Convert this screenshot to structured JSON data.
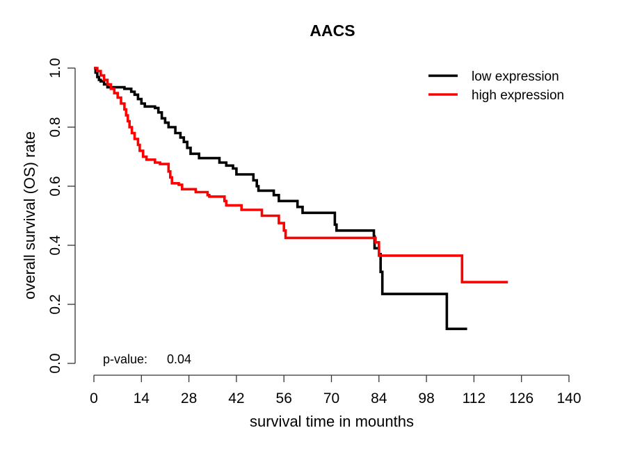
{
  "chart_data": {
    "type": "line",
    "subtype": "kaplan-meier step",
    "title": "AACS",
    "xlabel": "survival time in mounths",
    "ylabel": "overall survival (OS) rate",
    "xlim": [
      0,
      140
    ],
    "ylim": [
      0,
      1
    ],
    "x_ticks": [
      0,
      14,
      28,
      42,
      56,
      70,
      84,
      98,
      112,
      126,
      140
    ],
    "x_tick_labels": [
      "0",
      "14",
      "28",
      "42",
      "56",
      "70",
      "84",
      "98",
      "112",
      "126",
      "140"
    ],
    "y_ticks": [
      0,
      0.2,
      0.4,
      0.6,
      0.8,
      1.0
    ],
    "y_tick_labels": [
      "0.0",
      "0.2",
      "0.4",
      "0.6",
      "0.8",
      "1.0"
    ],
    "grid": false,
    "legend_position": "top-right",
    "annotation": {
      "label": "p-value:",
      "value": "0.04"
    },
    "series": [
      {
        "name": "low expression",
        "color": "#000000",
        "points": [
          [
            0,
            1.0
          ],
          [
            0.5,
            0.985
          ],
          [
            1,
            0.97
          ],
          [
            1.5,
            0.96
          ],
          [
            2,
            0.955
          ],
          [
            3,
            0.945
          ],
          [
            4,
            0.935
          ],
          [
            9,
            0.93
          ],
          [
            11,
            0.92
          ],
          [
            12,
            0.91
          ],
          [
            13,
            0.895
          ],
          [
            14,
            0.88
          ],
          [
            15,
            0.87
          ],
          [
            18,
            0.865
          ],
          [
            19,
            0.85
          ],
          [
            20,
            0.83
          ],
          [
            21,
            0.815
          ],
          [
            22,
            0.8
          ],
          [
            24,
            0.78
          ],
          [
            25.5,
            0.765
          ],
          [
            26.5,
            0.75
          ],
          [
            27.5,
            0.73
          ],
          [
            28.5,
            0.71
          ],
          [
            31,
            0.695
          ],
          [
            37,
            0.68
          ],
          [
            39,
            0.67
          ],
          [
            41,
            0.66
          ],
          [
            42,
            0.64
          ],
          [
            47,
            0.62
          ],
          [
            48,
            0.6
          ],
          [
            48.5,
            0.585
          ],
          [
            53,
            0.57
          ],
          [
            54.5,
            0.55
          ],
          [
            60,
            0.53
          ],
          [
            61.5,
            0.51
          ],
          [
            71,
            0.47
          ],
          [
            71.5,
            0.45
          ],
          [
            82.5,
            0.43
          ],
          [
            82.7,
            0.39
          ],
          [
            84,
            0.37
          ],
          [
            84.5,
            0.31
          ],
          [
            85,
            0.235
          ],
          [
            104,
            0.117
          ],
          [
            110,
            0.117
          ]
        ]
      },
      {
        "name": "high expression",
        "color": "#ff0000",
        "points": [
          [
            0,
            1.0
          ],
          [
            1,
            0.99
          ],
          [
            2,
            0.975
          ],
          [
            3,
            0.96
          ],
          [
            4,
            0.945
          ],
          [
            5,
            0.93
          ],
          [
            6,
            0.915
          ],
          [
            7,
            0.9
          ],
          [
            8,
            0.88
          ],
          [
            9,
            0.86
          ],
          [
            9.5,
            0.84
          ],
          [
            10,
            0.82
          ],
          [
            10.5,
            0.8
          ],
          [
            11.2,
            0.78
          ],
          [
            12,
            0.76
          ],
          [
            13,
            0.74
          ],
          [
            13.5,
            0.72
          ],
          [
            14.5,
            0.7
          ],
          [
            15.5,
            0.69
          ],
          [
            18,
            0.68
          ],
          [
            19.5,
            0.675
          ],
          [
            22,
            0.65
          ],
          [
            22.5,
            0.63
          ],
          [
            23,
            0.61
          ],
          [
            25,
            0.605
          ],
          [
            26,
            0.59
          ],
          [
            30,
            0.58
          ],
          [
            33.5,
            0.57
          ],
          [
            34,
            0.565
          ],
          [
            38.5,
            0.55
          ],
          [
            39,
            0.535
          ],
          [
            43.5,
            0.52
          ],
          [
            49.5,
            0.5
          ],
          [
            54.5,
            0.475
          ],
          [
            56,
            0.45
          ],
          [
            56.5,
            0.425
          ],
          [
            83,
            0.41
          ],
          [
            84,
            0.365
          ],
          [
            108.5,
            0.275
          ],
          [
            122,
            0.275
          ]
        ]
      }
    ]
  }
}
